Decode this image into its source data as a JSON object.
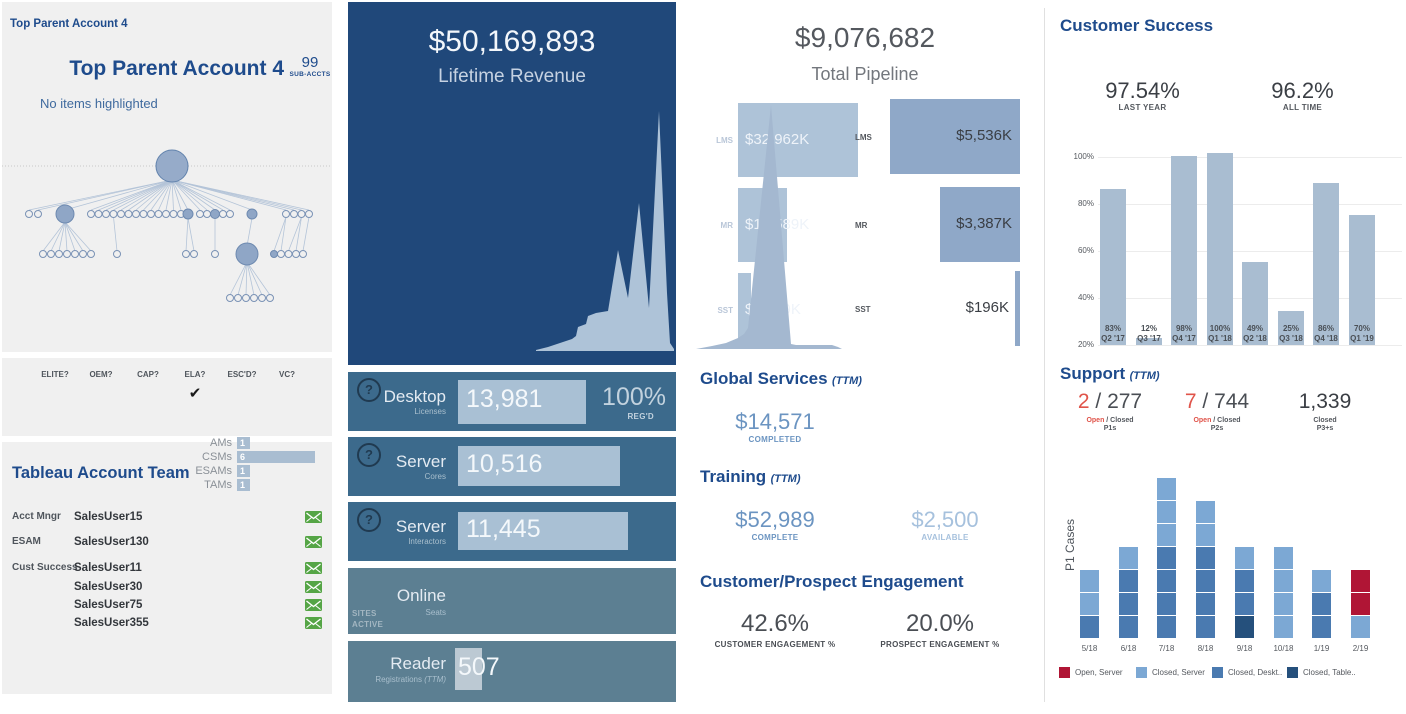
{
  "colors": {
    "heading_blue": "#1e4b8c",
    "dark_panel": "#20487a",
    "teal_panel": "#3c6a8c",
    "gray_panel": "#5c7f92",
    "light_bar": "#aec3d8",
    "steel_bar": "#8fa8c8",
    "cs_bar": "#a9bdd1",
    "open_red": "#e0544a",
    "crimson": "#b01535",
    "money_blue": "#6b94c1",
    "money_blue_light": "#a6c1dd",
    "mail_green": "#55a546"
  },
  "left_panel": {
    "filter_title": "Top Parent Account 4",
    "account": {
      "title": "Top Parent Account 4",
      "sub_accts_value": "99",
      "sub_accts_label": "SUB-ACCTS",
      "highlight_note": "No items highlighted"
    },
    "flags": {
      "headers": [
        "ELITE?",
        "OEM?",
        "CAP?",
        "ELA?",
        "ESC'D?",
        "VC?"
      ],
      "checked_header": "ELA?",
      "checked_index": 3,
      "checkmark": "✔"
    },
    "team": {
      "title": "Tableau Account Team",
      "role_counts": [
        {
          "label": "AMs",
          "value": 1
        },
        {
          "label": "CSMs",
          "value": 6
        },
        {
          "label": "ESAMs",
          "value": 1
        },
        {
          "label": "TAMs",
          "value": 1
        }
      ],
      "members": [
        {
          "role": "Acct Mngr",
          "name": "SalesUser15"
        },
        {
          "role": "ESAM",
          "name": "SalesUser130"
        },
        {
          "role": "Cust Success",
          "name": "SalesUser11"
        },
        {
          "role": "",
          "name": "SalesUser30"
        },
        {
          "role": "",
          "name": "SalesUser75"
        },
        {
          "role": "",
          "name": "SalesUser355"
        }
      ],
      "mail_icon": "envelope"
    }
  },
  "revenue_panel": {
    "total": "$50,169,893",
    "subtitle": "Lifetime Revenue"
  },
  "usage_panels": [
    {
      "help": "?",
      "title": "Desktop",
      "subtitle": "Licenses",
      "value": "13,981",
      "extra_value": "100%",
      "extra_label": "REG'D"
    },
    {
      "help": "?",
      "title": "Server",
      "subtitle": "Cores",
      "value": "10,516"
    },
    {
      "help": "?",
      "title": "Server",
      "subtitle": "Interactors",
      "value": "11,445"
    },
    {
      "title": "Online",
      "subtitle": "Seats",
      "side_top": "SITES",
      "side_bottom": "ACTIVE"
    },
    {
      "title": "Reader",
      "subtitle": "Registrations",
      "subtitle_ttm": "(TTM)",
      "value": "507"
    }
  ],
  "pipeline_panel": {
    "total": "$9,076,682",
    "subtitle": "Total Pipeline"
  },
  "services": {
    "heading": "Global Services",
    "ttm": "(TTM)",
    "completed_value": "$14,571",
    "completed_label": "COMPLETED"
  },
  "training": {
    "heading": "Training",
    "ttm": "(TTM)",
    "complete_value": "$52,989",
    "complete_label": "COMPLETE",
    "available_value": "$2,500",
    "available_label": "AVAILABLE"
  },
  "engagement": {
    "heading": "Customer/Prospect Engagement",
    "customer_value": "42.6%",
    "customer_label": "CUSTOMER ENGAGEMENT %",
    "prospect_value": "20.0%",
    "prospect_label": "PROSPECT ENGAGEMENT %"
  },
  "customer_success": {
    "heading": "Customer Success",
    "last_year_value": "97.54%",
    "last_year_label": "LAST YEAR",
    "all_time_value": "96.2%",
    "all_time_label": "ALL TIME"
  },
  "support": {
    "heading": "Support",
    "ttm": "(TTM)",
    "stats": [
      {
        "open": "2",
        "closed": "277",
        "open_label": "Open",
        "closed_label": "Closed",
        "group_label": "P1s"
      },
      {
        "open": "7",
        "closed": "744",
        "open_label": "Open",
        "closed_label": "Closed",
        "group_label": "P2s"
      },
      {
        "open": null,
        "closed": "1,339",
        "open_label": null,
        "closed_label": "Closed",
        "group_label": "P3+s"
      }
    ]
  },
  "chart_data": [
    {
      "id": "account_hierarchy",
      "type": "node_link_tree",
      "description": "Account hierarchy graph: one large root node connected to ~27 sub-account nodes; several sub-nodes have their own children; one mid-size node has 6 grandchildren.",
      "root_label": "Top Parent Account 4",
      "sub_accounts": 99
    },
    {
      "id": "team_roles",
      "type": "bar",
      "orientation": "horizontal",
      "categories": [
        "AMs",
        "CSMs",
        "ESAMs",
        "TAMs"
      ],
      "values": [
        1,
        6,
        1,
        1
      ]
    },
    {
      "id": "lifetime_revenue_bars",
      "type": "bar",
      "orientation": "horizontal",
      "title": "$50,169,893",
      "subtitle": "Lifetime Revenue",
      "categories": [
        "LMS",
        "MR",
        "SST"
      ],
      "values": [
        32962,
        13589,
        3619
      ],
      "unit": "$K",
      "value_labels": [
        "$32,962K",
        "$13,589K",
        "$3,619K"
      ]
    },
    {
      "id": "lifetime_revenue_trend",
      "type": "area",
      "description": "Lifetime revenue over time: low flat start, stepped growth, then three sharp spikes of increasing height at the right edge.",
      "x_normalized": [
        0.12,
        0.19,
        0.27,
        0.35,
        0.39,
        0.44,
        0.5,
        0.58,
        0.65,
        0.71,
        0.78,
        0.84,
        0.91,
        0.97,
        1.0
      ],
      "y_normalized": [
        0.01,
        0.02,
        0.04,
        0.06,
        0.1,
        0.13,
        0.15,
        0.16,
        0.39,
        0.2,
        0.57,
        0.17,
        0.92,
        0.2,
        0.01
      ]
    },
    {
      "id": "pipeline_bars",
      "type": "bar",
      "orientation": "horizontal",
      "title": "$9,076,682",
      "subtitle": "Total Pipeline",
      "categories": [
        "LMS",
        "MR",
        "SST"
      ],
      "values": [
        5536,
        3387,
        196
      ],
      "unit": "$K",
      "value_labels": [
        "$5,536K",
        "$3,387K",
        "$196K"
      ]
    },
    {
      "id": "pipeline_trend",
      "type": "area",
      "description": "Pipeline over time: single tall narrow spike near the left-center, then a thin flat tail to the right.",
      "x_normalized": [
        0.03,
        0.2,
        0.31,
        0.36,
        0.53,
        0.66,
        0.69,
        0.95,
        1.0
      ],
      "y_normalized": [
        0.0,
        0.03,
        0.06,
        0.08,
        0.97,
        0.02,
        0.02,
        0.02,
        0.0
      ]
    },
    {
      "id": "customer_success_quarterly",
      "type": "bar",
      "categories": [
        "Q2 '17",
        "Q3 '17",
        "Q4 '17",
        "Q1 '18",
        "Q2 '18",
        "Q3 '18",
        "Q4 '18",
        "Q1 '19"
      ],
      "value_labels": [
        "83%",
        "12%",
        "98%",
        "100%",
        "49%",
        "25%",
        "86%",
        "70%"
      ],
      "values": [
        83,
        12,
        98,
        100,
        49,
        25,
        86,
        70
      ],
      "drawn_values": [
        86.5,
        23,
        100.5,
        102,
        55.5,
        34.5,
        89,
        75.5
      ],
      "ylim": [
        20,
        100
      ],
      "yticks": [
        "20%",
        "40%",
        "60%",
        "80%",
        "100%"
      ],
      "grid": true,
      "bar_color": "#a9bdd1"
    },
    {
      "id": "p1_cases",
      "type": "stacked_bar",
      "ylabel": "P1 Cases",
      "categories": [
        "5/18",
        "6/18",
        "7/18",
        "8/18",
        "9/18",
        "10/18",
        "1/19",
        "2/19"
      ],
      "unit": "cases (1 square = 1 case)",
      "totals": [
        3,
        4,
        7,
        6,
        4,
        4,
        3,
        3
      ],
      "stacks_bottom_to_top": [
        [
          "closed_desktop",
          "closed_server",
          "closed_server"
        ],
        [
          "closed_desktop",
          "closed_desktop",
          "closed_desktop",
          "closed_server"
        ],
        [
          "closed_desktop",
          "closed_desktop",
          "closed_desktop",
          "closed_desktop",
          "closed_server",
          "closed_server",
          "closed_server"
        ],
        [
          "closed_desktop",
          "closed_desktop",
          "closed_desktop",
          "closed_desktop",
          "closed_server",
          "closed_server"
        ],
        [
          "closed_tableau",
          "closed_desktop",
          "closed_desktop",
          "closed_server"
        ],
        [
          "closed_server",
          "closed_server",
          "closed_server",
          "closed_server"
        ],
        [
          "closed_desktop",
          "closed_desktop",
          "closed_server"
        ],
        [
          "closed_server",
          "open_server",
          "open_server"
        ]
      ],
      "series_colors": {
        "open_server": "#b01535",
        "closed_server": "#7ca8d4",
        "closed_desktop": "#4a7ab0",
        "closed_tableau": "#25507c"
      },
      "legend": [
        {
          "key": "open_server",
          "label": "Open, Server"
        },
        {
          "key": "closed_server",
          "label": "Closed, Server"
        },
        {
          "key": "closed_desktop",
          "label": "Closed, Deskt.."
        },
        {
          "key": "closed_tableau",
          "label": "Closed, Table.."
        }
      ],
      "legend_position": "bottom"
    }
  ]
}
